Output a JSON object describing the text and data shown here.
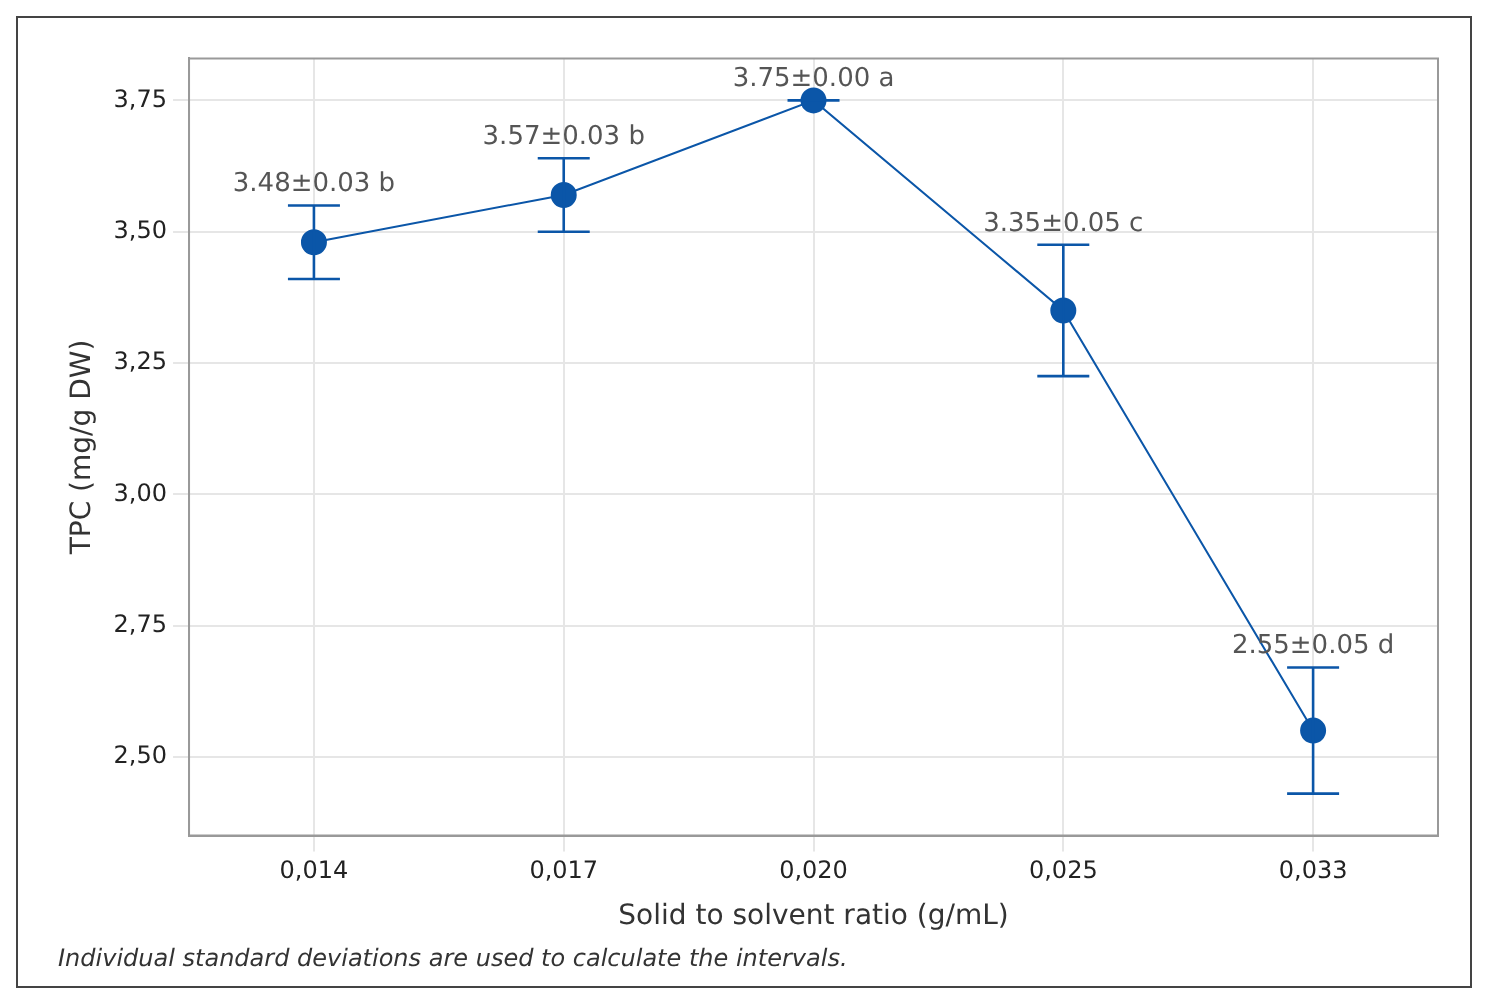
{
  "chart_data": {
    "type": "line",
    "xlabel": "Solid to solvent ratio (g/mL)",
    "ylabel": "TPC (mg/g DW)",
    "categories": [
      "0,014",
      "0,017",
      "0,020",
      "0,025",
      "0,033"
    ],
    "series": [
      {
        "color": "#0b56a8",
        "values": [
          3.48,
          3.57,
          3.75,
          3.35,
          2.55
        ],
        "errors": [
          0.07,
          0.07,
          0,
          0.125,
          0.12
        ],
        "value_labels": [
          "3.48±0.03 b",
          "3.57±0.03 b",
          "3.75±0.00 a",
          "3.35±0.05 c",
          "2.55±0.05 d"
        ]
      }
    ],
    "ylim": [
      2.35,
      3.83
    ],
    "yticks": [
      {
        "value": 2.5,
        "label": "2,50"
      },
      {
        "value": 2.75,
        "label": "2,75"
      },
      {
        "value": 3,
        "label": "3,00"
      },
      {
        "value": 3.25,
        "label": "3,25"
      },
      {
        "value": 3.5,
        "label": "3,50"
      },
      {
        "value": 3.75,
        "label": "3,75"
      }
    ],
    "grid": true,
    "legend": false,
    "marker": "circle",
    "line_style": "solid",
    "annotations": [
      "Individual standard deviations are used to calculate the intervals."
    ]
  }
}
